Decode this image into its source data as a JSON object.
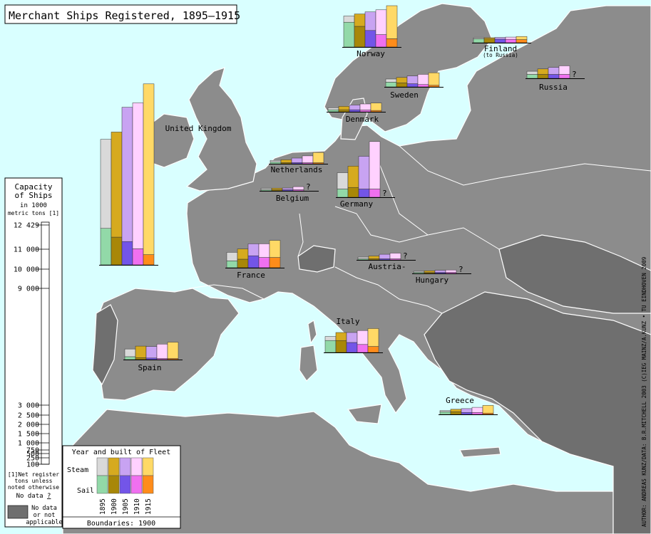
{
  "title": "Merchant Ships Registered, 1895–1915",
  "colors": {
    "sea": "#d9ffff",
    "land": "#8c8c8c",
    "land_dark": "#6f6f6f",
    "steam": [
      "#d9d9d9",
      "#d6aa1f",
      "#c8a3f2",
      "#ffd1ff",
      "#ffd966"
    ],
    "sail": [
      "#92d9a8",
      "#a88708",
      "#7355e8",
      "#f070f0",
      "#ff8c1a"
    ]
  },
  "scale": {
    "heading": [
      "Capacity",
      "of Ships",
      "in 1000",
      "metric tons"
    ],
    "footnote_mark": "[1]",
    "ticks": [
      "12 429",
      "11 000",
      "10 000",
      "9 000",
      "3 000",
      "2 500",
      "2 000",
      "1 500",
      "1 000",
      "750",
      "500",
      "250",
      "100"
    ],
    "footnote": [
      "[1]Net register",
      "tons unless",
      "noted otherwise"
    ],
    "no_data_label": "No data",
    "no_data_mark": "?",
    "no_data_box": [
      "No data",
      "or not",
      "applicable"
    ]
  },
  "legend": {
    "title": "Year and built of Fleet",
    "steam_label": "Steam",
    "sail_label": "Sail",
    "years": [
      "1895",
      "1900",
      "1905",
      "1910",
      "1915"
    ],
    "boundaries": "Boundaries: 1900"
  },
  "credit": "AUTHOR: ANDREAS KUNZ/DATA: B.R.MITCHELL 2003 (C)IEG MAINZ/A.KUNZ • TU EINDHOVEN 2009",
  "chart_data": {
    "type": "bar",
    "unit": "1000 metric tons",
    "categories": [
      "1895",
      "1900",
      "1905",
      "1910",
      "1915"
    ],
    "countries": [
      {
        "name": "United Kingdom",
        "sail": [
          2500,
          1900,
          1600,
          1100,
          700
        ],
        "steam": [
          6100,
          7200,
          9200,
          10000,
          11700
        ]
      },
      {
        "name": "Norway",
        "sail": [
          1200,
          1000,
          800,
          600,
          400
        ],
        "steam": [
          300,
          600,
          900,
          1200,
          1600
        ]
      },
      {
        "name": "Sweden",
        "sail": [
          300,
          250,
          200,
          150,
          100
        ],
        "steam": [
          200,
          350,
          500,
          650,
          800
        ]
      },
      {
        "name": "Finland",
        "sublabel": "(to Russia)",
        "sail": [
          250,
          240,
          230,
          220,
          200
        ],
        "steam": [
          60,
          80,
          110,
          140,
          200
        ]
      },
      {
        "name": "Russia",
        "sail": [
          250,
          250,
          250,
          250,
          null
        ],
        "steam": [
          200,
          350,
          450,
          550,
          null
        ]
      },
      {
        "name": "Denmark",
        "sail": [
          150,
          150,
          150,
          130,
          100
        ],
        "steam": [
          150,
          250,
          350,
          450,
          550
        ]
      },
      {
        "name": "Netherlands",
        "sail": [
          150,
          100,
          100,
          50,
          30
        ],
        "steam": [
          150,
          250,
          400,
          600,
          900
        ]
      },
      {
        "name": "Belgium",
        "sail": [
          10,
          10,
          10,
          10,
          null
        ],
        "steam": [
          90,
          100,
          110,
          200,
          null
        ]
      },
      {
        "name": "Germany",
        "sail": [
          500,
          600,
          500,
          500,
          null
        ],
        "steam": [
          1000,
          1300,
          2000,
          2900,
          null
        ]
      },
      {
        "name": "France",
        "sail": [
          400,
          500,
          700,
          600,
          600
        ],
        "steam": [
          500,
          600,
          700,
          800,
          1000
        ]
      },
      {
        "name": "Austria-",
        "sail": [
          50,
          40,
          30,
          20,
          null
        ],
        "steam": [
          150,
          250,
          400,
          500,
          null
        ]
      },
      {
        "name": "Hungary",
        "sail": [
          40,
          30,
          20,
          20,
          null
        ],
        "steam": [
          60,
          100,
          130,
          150,
          null
        ]
      },
      {
        "name": "Spain",
        "sail": [
          150,
          100,
          80,
          50,
          40
        ],
        "steam": [
          400,
          600,
          600,
          750,
          850
        ]
      },
      {
        "name": "Italy",
        "sail": [
          600,
          600,
          500,
          400,
          300
        ],
        "steam": [
          200,
          400,
          500,
          700,
          900
        ]
      },
      {
        "name": "Greece",
        "sail": [
          200,
          200,
          150,
          150,
          100
        ],
        "steam": [
          100,
          200,
          300,
          400,
          600
        ]
      }
    ]
  }
}
